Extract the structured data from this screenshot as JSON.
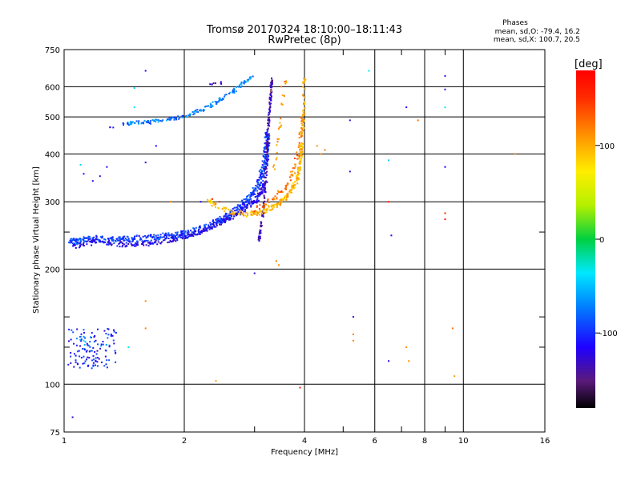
{
  "title": "Tromsø 20170324 18:10:00–18:11:43",
  "subtitle": "RwPretec (8p)",
  "stats": {
    "heading": "Phases",
    "line1": "mean, sd,O: -79.4, 16.2",
    "line2": "mean, sd,X: 100.7, 20.5"
  },
  "colorbar": {
    "label": "[deg]",
    "range": [
      -180,
      180
    ],
    "ticks": [
      {
        "v": 100,
        "label": "100"
      },
      {
        "v": 0,
        "label": "0"
      },
      {
        "v": -100,
        "label": "-100"
      }
    ]
  },
  "chart_data": {
    "type": "scatter",
    "xlabel": "Frequency [MHz]",
    "ylabel": "Stationary phase Virtual Height [km]",
    "xscale": "log",
    "yscale": "log",
    "xlim": [
      1,
      16
    ],
    "ylim": [
      75,
      750
    ],
    "xticks": [
      {
        "v": 1,
        "label": "1"
      },
      {
        "v": 2,
        "label": "2"
      },
      {
        "v": 4,
        "label": "4"
      },
      {
        "v": 6,
        "label": "6"
      },
      {
        "v": 8,
        "label": "8"
      },
      {
        "v": 10,
        "label": "10"
      },
      {
        "v": 16,
        "label": "16"
      }
    ],
    "xminor": [
      3,
      5,
      7,
      9
    ],
    "yticks": [
      {
        "v": 75,
        "label": "75"
      },
      {
        "v": 100,
        "label": "100"
      },
      {
        "v": 200,
        "label": "200"
      },
      {
        "v": 300,
        "label": "300"
      },
      {
        "v": 400,
        "label": "400"
      },
      {
        "v": 500,
        "label": "500"
      },
      {
        "v": 600,
        "label": "600"
      },
      {
        "v": 750,
        "label": "750"
      }
    ],
    "ygrid": [
      100,
      200,
      300,
      400,
      500,
      600
    ],
    "yminor": [
      125,
      150,
      250
    ],
    "series": [
      {
        "kind": "curve",
        "x": [
          1.03,
          1.1,
          1.2,
          1.35,
          1.5,
          1.7,
          1.9,
          2.1,
          2.3,
          2.5,
          2.7,
          2.9,
          3.05,
          3.15,
          3.2,
          3.22,
          3.23
        ],
        "y": [
          235,
          238,
          240,
          238,
          240,
          242,
          245,
          250,
          258,
          270,
          285,
          305,
          330,
          360,
          390,
          420,
          450
        ],
        "phase": -95,
        "spreadX": 0.015,
        "spreadY": 0.02,
        "density": 40
      },
      {
        "kind": "curve",
        "x": [
          1.05,
          1.2,
          1.4,
          1.6,
          1.8,
          2.0,
          2.2,
          2.4,
          2.6,
          2.8,
          3.0,
          3.1,
          3.2
        ],
        "y": [
          228,
          236,
          232,
          232,
          238,
          243,
          250,
          262,
          272,
          285,
          300,
          315,
          340
        ],
        "phase": -120,
        "spreadX": 0.01,
        "spreadY": 0.015,
        "density": 26
      },
      {
        "kind": "curve",
        "x": [
          3.08,
          3.12,
          3.16,
          3.19,
          3.21,
          3.23,
          3.25,
          3.28,
          3.3,
          3.32
        ],
        "y": [
          240,
          260,
          290,
          330,
          380,
          420,
          480,
          540,
          590,
          630
        ],
        "phase": -135,
        "spreadX": 0.005,
        "spreadY": 0.02,
        "density": 22
      },
      {
        "kind": "curve",
        "x": [
          2.3,
          2.6,
          2.9,
          3.1,
          3.3,
          3.5,
          3.65,
          3.8,
          3.88,
          3.92,
          3.95,
          3.98,
          4.0
        ],
        "y": [
          300,
          282,
          278,
          282,
          290,
          300,
          315,
          335,
          360,
          400,
          450,
          520,
          640
        ],
        "phase": 95,
        "spreadX": 0.008,
        "spreadY": 0.015,
        "density": 24
      },
      {
        "kind": "curve",
        "x": [
          3.0,
          3.2,
          3.4,
          3.6,
          3.75,
          3.85,
          3.92,
          3.97
        ],
        "y": [
          285,
          295,
          310,
          330,
          360,
          400,
          450,
          520
        ],
        "phase": 125,
        "spreadX": 0.008,
        "spreadY": 0.02,
        "density": 12
      },
      {
        "kind": "curve",
        "x": [
          1.4,
          1.6,
          1.8,
          2.0,
          2.2,
          2.4,
          2.6,
          2.8,
          2.95
        ],
        "y": [
          480,
          485,
          492,
          502,
          520,
          545,
          575,
          610,
          635
        ],
        "phase": -70,
        "spreadX": 0.01,
        "spreadY": 0.01,
        "density": 20
      },
      {
        "kind": "curve",
        "x": [
          1.4,
          1.6,
          1.8,
          2.0
        ],
        "y": [
          478,
          482,
          490,
          500
        ],
        "phase": -85,
        "spreadX": 0.008,
        "spreadY": 0.01,
        "density": 6
      },
      {
        "kind": "curve",
        "x": [
          1.3,
          1.35
        ],
        "y": [
          470,
          473
        ],
        "phase": -110,
        "spreadX": 0.005,
        "spreadY": 0.005,
        "density": 3
      },
      {
        "kind": "curve",
        "x": [
          2.3,
          2.4,
          2.5
        ],
        "y": [
          608,
          612,
          615
        ],
        "phase": -135,
        "spreadX": 0.005,
        "spreadY": 0.008,
        "density": 4
      },
      {
        "kind": "curve",
        "x": [
          3.35,
          3.4,
          3.45,
          3.5,
          3.55,
          3.6
        ],
        "y": [
          360,
          400,
          450,
          520,
          580,
          620
        ],
        "phase": 110,
        "spreadX": 0.006,
        "spreadY": 0.02,
        "density": 5
      },
      {
        "kind": "cluster",
        "x": [
          1.02,
          1.35
        ],
        "y": [
          110,
          140
        ],
        "phase": -105,
        "n": 110
      },
      {
        "kind": "cluster",
        "x": [
          1.05,
          1.3
        ],
        "y": [
          125,
          135
        ],
        "phase": -75,
        "n": 14
      },
      {
        "kind": "points",
        "phase": -120,
        "pts": [
          [
            1.28,
            370
          ],
          [
            1.23,
            350
          ],
          [
            1.12,
            355
          ],
          [
            1.18,
            340
          ],
          [
            3.0,
            195
          ],
          [
            5.2,
            360
          ],
          [
            6.6,
            245
          ],
          [
            7.2,
            530
          ],
          [
            9.0,
            370
          ],
          [
            6.5,
            115
          ],
          [
            9.0,
            640
          ],
          [
            9.0,
            590
          ],
          [
            1.05,
            82
          ],
          [
            1.6,
            660
          ],
          [
            1.6,
            380
          ],
          [
            1.7,
            420
          ],
          [
            2.2,
            300
          ],
          [
            5.2,
            490
          ],
          [
            5.3,
            150
          ],
          [
            1.2,
            130
          ],
          [
            1.15,
            112
          ]
        ]
      },
      {
        "kind": "points",
        "phase": -40,
        "pts": [
          [
            5.8,
            660
          ],
          [
            1.5,
            595
          ],
          [
            1.5,
            530
          ],
          [
            1.45,
            125
          ],
          [
            9.0,
            530
          ],
          [
            6.5,
            385
          ],
          [
            1.1,
            375
          ],
          [
            1.12,
            130
          ]
        ]
      },
      {
        "kind": "points",
        "phase": 115,
        "pts": [
          [
            1.6,
            165
          ],
          [
            1.6,
            140
          ],
          [
            5.3,
            130
          ],
          [
            5.3,
            135
          ],
          [
            7.2,
            125
          ],
          [
            7.3,
            115
          ],
          [
            9.4,
            140
          ],
          [
            9.5,
            105
          ],
          [
            2.4,
            102
          ],
          [
            7.7,
            490
          ],
          [
            13.5,
            400
          ],
          [
            4.4,
            400
          ],
          [
            4.5,
            410
          ],
          [
            4.3,
            420
          ],
          [
            3.4,
            210
          ],
          [
            3.45,
            205
          ],
          [
            1.85,
            300
          ],
          [
            3.5,
            475
          ],
          [
            3.3,
            585
          ],
          [
            3.5,
            600
          ]
        ]
      },
      {
        "kind": "points",
        "phase": 165,
        "pts": [
          [
            3.9,
            98
          ],
          [
            9.0,
            270
          ],
          [
            6.5,
            300
          ],
          [
            9.0,
            280
          ],
          [
            2.45,
            300
          ],
          [
            2.35,
            305
          ]
        ]
      }
    ]
  }
}
